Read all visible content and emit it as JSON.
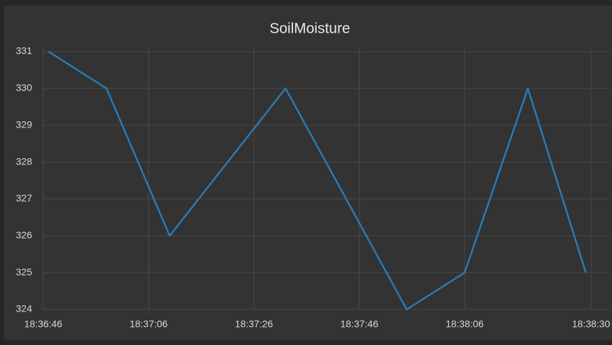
{
  "chart_data": {
    "type": "line",
    "title": "SoilMoisture",
    "x": [
      67007,
      67018,
      67030,
      67052,
      67075,
      67086,
      67098,
      67109
    ],
    "series": [
      {
        "name": "SoilMoisture",
        "color": "#2a7ab5",
        "values": [
          331,
          330,
          326,
          330,
          324,
          325,
          330,
          325
        ]
      }
    ],
    "xlim": [
      67006,
      67110
    ],
    "xticks": [
      {
        "value": 67006,
        "label": "18:36:46"
      },
      {
        "value": 67026,
        "label": "18:37:06"
      },
      {
        "value": 67046,
        "label": "18:37:26"
      },
      {
        "value": 67066,
        "label": "18:37:46"
      },
      {
        "value": 67086,
        "label": "18:38:06"
      },
      {
        "value": 67110,
        "label": "18:38:30"
      }
    ],
    "ylim": [
      324,
      331
    ],
    "yticks": [
      324,
      325,
      326,
      327,
      328,
      329,
      330,
      331
    ],
    "grid": true
  }
}
